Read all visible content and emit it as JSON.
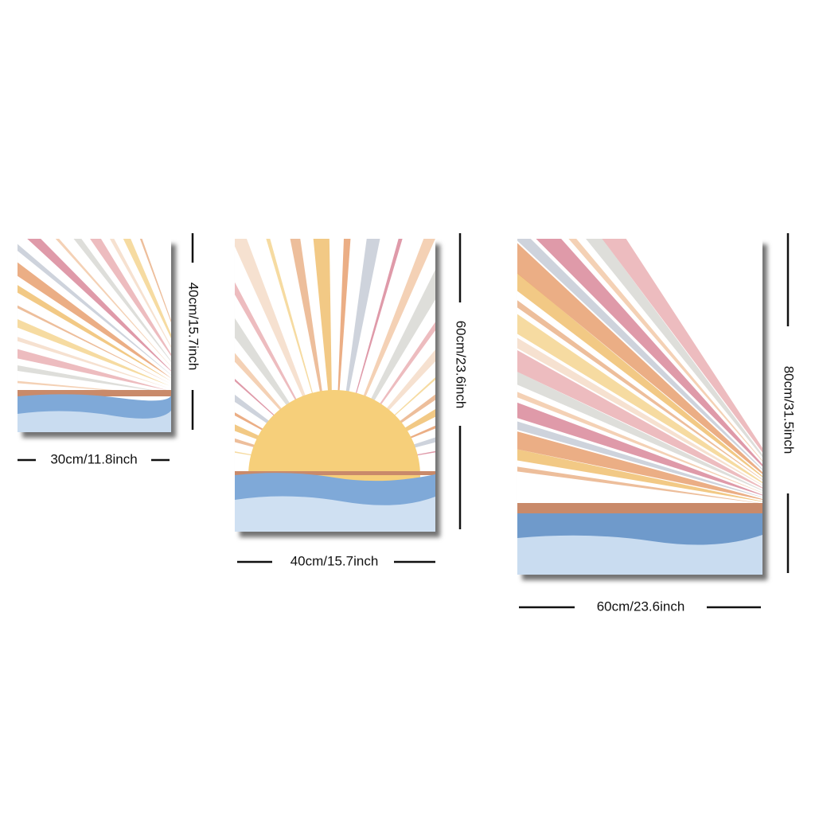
{
  "posters": [
    {
      "width_label": "30cm/11.8inch",
      "height_label": "40cm/15.7inch"
    },
    {
      "width_label": "40cm/15.7inch",
      "height_label": "60cm/23.6inch"
    },
    {
      "width_label": "60cm/23.6inch",
      "height_label": "80cm/31.5inch"
    }
  ]
}
